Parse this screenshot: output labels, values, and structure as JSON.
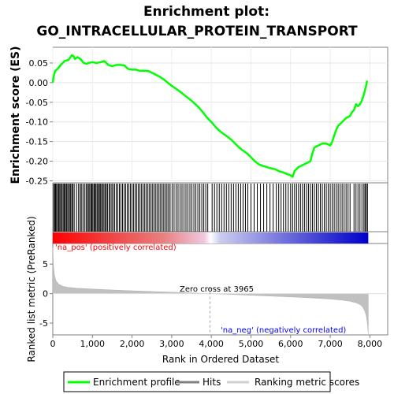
{
  "chart_data": {
    "type": "line",
    "title_line1": "Enrichment plot:",
    "title_line2": "GO_INTRACELLULAR_PROTEIN_TRANSPORT",
    "ylabel_top": "Enrichment score (ES)",
    "ylabel_bottom": "Ranked list metric (PreRanked)",
    "xlabel": "Rank in Ordered Dataset",
    "x_ticks": [
      "0",
      "1,000",
      "2,000",
      "3,000",
      "4,000",
      "5,000",
      "6,000",
      "7,000",
      "8,000"
    ],
    "x_tick_values": [
      0,
      1000,
      2000,
      3000,
      4000,
      5000,
      6000,
      7000,
      8000
    ],
    "es_y_ticks": [
      "0.05",
      "0.00",
      "-0.05",
      "-0.10",
      "-0.15",
      "-0.20",
      "-0.25"
    ],
    "es_y_tick_values": [
      0.05,
      0.0,
      -0.05,
      -0.1,
      -0.15,
      -0.2,
      -0.25
    ],
    "es_ylim": [
      -0.255,
      0.09
    ],
    "metric_y_ticks": [
      "5",
      "0",
      "-5"
    ],
    "metric_y_tick_values": [
      5,
      0,
      -5
    ],
    "metric_ylim": [
      -7,
      8.5
    ],
    "xlim": [
      0,
      8450
    ],
    "n_genes": 7960,
    "zero_cross_label": "Zero cross at 3965",
    "zero_cross": 3965,
    "pos_label": "'na_pos' (positively correlated)",
    "neg_label": "'na_neg' (negatively correlated)",
    "es_curve": {
      "x": [
        0,
        20,
        60,
        120,
        200,
        300,
        400,
        480,
        520,
        560,
        620,
        700,
        780,
        850,
        900,
        1000,
        1100,
        1200,
        1300,
        1350,
        1400,
        1500,
        1600,
        1700,
        1800,
        1900,
        2000,
        2100,
        2200,
        2300,
        2400,
        2500,
        2600,
        2700,
        2800,
        2900,
        3000,
        3100,
        3200,
        3300,
        3400,
        3500,
        3600,
        3700,
        3800,
        3900,
        4000,
        4100,
        4200,
        4300,
        4400,
        4500,
        4600,
        4700,
        4800,
        4900,
        5000,
        5100,
        5200,
        5300,
        5400,
        5500,
        5600,
        5700,
        5800,
        5900,
        6000,
        6050,
        6100,
        6200,
        6300,
        6400,
        6500,
        6550,
        6600,
        6700,
        6800,
        6900,
        7000,
        7050,
        7100,
        7150,
        7200,
        7300,
        7400,
        7500,
        7550,
        7600,
        7650,
        7700,
        7750,
        7800,
        7850,
        7900,
        7930
      ],
      "y": [
        0.0,
        0.015,
        0.03,
        0.035,
        0.045,
        0.055,
        0.058,
        0.07,
        0.068,
        0.06,
        0.065,
        0.06,
        0.05,
        0.048,
        0.05,
        0.052,
        0.05,
        0.052,
        0.055,
        0.05,
        0.045,
        0.042,
        0.045,
        0.045,
        0.044,
        0.035,
        0.033,
        0.033,
        0.03,
        0.03,
        0.03,
        0.025,
        0.02,
        0.015,
        0.008,
        0.0,
        -0.008,
        -0.015,
        -0.022,
        -0.03,
        -0.038,
        -0.046,
        -0.055,
        -0.065,
        -0.077,
        -0.09,
        -0.1,
        -0.112,
        -0.122,
        -0.13,
        -0.137,
        -0.145,
        -0.155,
        -0.165,
        -0.173,
        -0.18,
        -0.19,
        -0.2,
        -0.208,
        -0.212,
        -0.215,
        -0.218,
        -0.22,
        -0.225,
        -0.228,
        -0.232,
        -0.236,
        -0.24,
        -0.225,
        -0.215,
        -0.21,
        -0.205,
        -0.2,
        -0.18,
        -0.165,
        -0.16,
        -0.155,
        -0.155,
        -0.16,
        -0.15,
        -0.135,
        -0.12,
        -0.11,
        -0.1,
        -0.09,
        -0.085,
        -0.075,
        -0.07,
        -0.055,
        -0.06,
        -0.055,
        -0.045,
        -0.03,
        -0.01,
        0.005
      ]
    },
    "hits": [
      25,
      45,
      70,
      95,
      120,
      150,
      175,
      200,
      230,
      260,
      285,
      310,
      340,
      360,
      395,
      420,
      450,
      480,
      505,
      540,
      600,
      650,
      690,
      720,
      760,
      800,
      840,
      870,
      900,
      930,
      960,
      985,
      1010,
      1040,
      1065,
      1090,
      1120,
      1150,
      1175,
      1200,
      1230,
      1260,
      1290,
      1320,
      1350,
      1380,
      1420,
      1450,
      1490,
      1520,
      1560,
      1600,
      1640,
      1680,
      1720,
      1760,
      1800,
      1840,
      1880,
      1920,
      1960,
      2000,
      2040,
      2080,
      2120,
      2160,
      2200,
      2240,
      2280,
      2320,
      2360,
      2400,
      2440,
      2480,
      2520,
      2560,
      2600,
      2640,
      2680,
      2720,
      2760,
      2800,
      2840,
      2880,
      2920,
      2960,
      3010,
      3060,
      3110,
      3160,
      3210,
      3260,
      3310,
      3360,
      3410,
      3460,
      3510,
      3560,
      3610,
      3660,
      3710,
      3760,
      3810,
      3860,
      3910,
      4020,
      4080,
      4140,
      4200,
      4260,
      4320,
      4380,
      4440,
      4500,
      4560,
      4620,
      4680,
      4740,
      4800,
      4860,
      4920,
      5000,
      5080,
      5160,
      5240,
      5320,
      5400,
      5480,
      5560,
      5640,
      5700,
      5760,
      5820,
      5880,
      5940,
      6000,
      6050,
      6100,
      6150,
      6200,
      6250,
      6300,
      6350,
      6400,
      6450,
      6500,
      6550,
      6600,
      6650,
      6700,
      6750,
      6800,
      6850,
      6900,
      6950,
      7000,
      7050,
      7100,
      7150,
      7200,
      7250,
      7300,
      7350,
      7400,
      7450,
      7500,
      7600,
      7650,
      7700,
      7750,
      7800,
      7850,
      7880,
      7910,
      7940
    ],
    "metric_curve": {
      "x": [
        0,
        15,
        40,
        80,
        150,
        250,
        400,
        600,
        1000,
        1500,
        2000,
        2500,
        3000,
        3500,
        3965,
        4500,
        5000,
        5500,
        6000,
        6500,
        7000,
        7300,
        7500,
        7650,
        7750,
        7820,
        7870,
        7910,
        7940,
        7960
      ],
      "y": [
        7.8,
        5.0,
        3.2,
        2.2,
        1.6,
        1.25,
        1.05,
        0.92,
        0.78,
        0.62,
        0.48,
        0.36,
        0.24,
        0.12,
        0.0,
        -0.14,
        -0.28,
        -0.42,
        -0.56,
        -0.72,
        -0.92,
        -1.1,
        -1.3,
        -1.55,
        -1.85,
        -2.3,
        -2.9,
        -3.8,
        -5.2,
        -6.8
      ]
    }
  },
  "legend": {
    "enrichment_label": "Enrichment profile",
    "hits_label": "Hits",
    "metric_label": "Ranking metric scores"
  },
  "colors": {
    "es_line": "#00ff00",
    "hits": "#000000",
    "metric_fill": "#c0c0c0",
    "pos_color": "#ff0000",
    "neg_color": "#0000ff"
  }
}
